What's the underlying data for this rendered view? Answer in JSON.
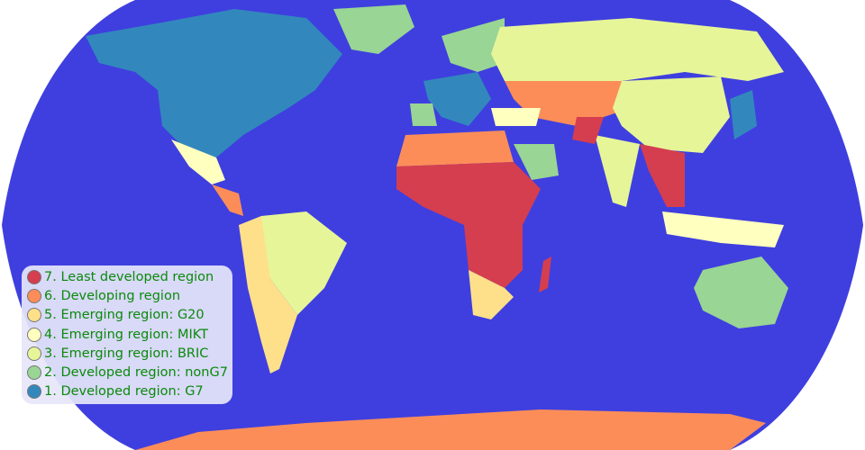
{
  "map": {
    "projection": "natural earth",
    "ocean_color": "#3f3fdf",
    "background_color": "#ffffff"
  },
  "legend": {
    "items": [
      {
        "label": "7. Least developed region",
        "color": "#d53e4f"
      },
      {
        "label": "6. Developing region",
        "color": "#fc8d59"
      },
      {
        "label": "5. Emerging region: G20",
        "color": "#fee08b"
      },
      {
        "label": "4. Emerging region: MIKT",
        "color": "#ffffbf"
      },
      {
        "label": "3. Emerging region: BRIC",
        "color": "#e6f598"
      },
      {
        "label": "2. Developed region: nonG7",
        "color": "#99d594"
      },
      {
        "label": "1. Developed region: G7",
        "color": "#3288bd"
      }
    ]
  }
}
